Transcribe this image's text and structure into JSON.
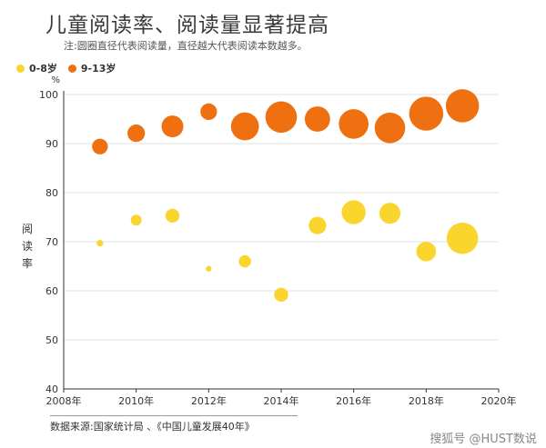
{
  "title": "儿童阅读率、阅读量显著提高",
  "subtitle": "注:圆圈直径代表阅读量，直径越大代表阅读本数越多。",
  "source": "数据来源:国家统计局 、《中国儿童发展40年》",
  "watermark": "搜狐号 @HUST数说",
  "ylabel": "阅读率",
  "colors": {
    "young": "#F9D52E",
    "old": "#EE7011"
  },
  "chart_data": {
    "type": "scatter",
    "y_unit": "%",
    "xlim": [
      2008,
      2020
    ],
    "ylim": [
      40,
      100
    ],
    "x_ticks": [
      2008,
      2010,
      2012,
      2014,
      2016,
      2018,
      2020
    ],
    "x_tick_labels": [
      "2008年",
      "2010年",
      "2012年",
      "2014年",
      "2016年",
      "2018年",
      "2020年"
    ],
    "y_ticks": [
      40,
      50,
      60,
      70,
      80,
      90,
      100
    ],
    "grid": true,
    "legend_position": "top-left",
    "series": [
      {
        "name": "0-8岁",
        "color": "#F9D52E",
        "points": [
          {
            "x": 2009,
            "y": 69.7,
            "size": 0.15
          },
          {
            "x": 2010,
            "y": 74.4,
            "size": 0.25
          },
          {
            "x": 2011,
            "y": 75.3,
            "size": 0.32
          },
          {
            "x": 2012,
            "y": 64.5,
            "size": 0.13
          },
          {
            "x": 2013,
            "y": 66.0,
            "size": 0.28
          },
          {
            "x": 2014,
            "y": 59.2,
            "size": 0.32
          },
          {
            "x": 2015,
            "y": 73.3,
            "size": 0.4
          },
          {
            "x": 2016,
            "y": 76.0,
            "size": 0.55
          },
          {
            "x": 2017,
            "y": 75.8,
            "size": 0.48
          },
          {
            "x": 2018,
            "y": 68.0,
            "size": 0.45
          },
          {
            "x": 2019,
            "y": 70.7,
            "size": 0.72
          }
        ]
      },
      {
        "name": "9-13岁",
        "color": "#EE7011",
        "points": [
          {
            "x": 2009,
            "y": 89.4,
            "size": 0.36
          },
          {
            "x": 2010,
            "y": 92.1,
            "size": 0.4
          },
          {
            "x": 2011,
            "y": 93.5,
            "size": 0.5
          },
          {
            "x": 2012,
            "y": 96.5,
            "size": 0.38
          },
          {
            "x": 2013,
            "y": 93.5,
            "size": 0.64
          },
          {
            "x": 2014,
            "y": 95.4,
            "size": 0.72
          },
          {
            "x": 2015,
            "y": 95.0,
            "size": 0.58
          },
          {
            "x": 2016,
            "y": 94.0,
            "size": 0.68
          },
          {
            "x": 2017,
            "y": 93.2,
            "size": 0.7
          },
          {
            "x": 2018,
            "y": 96.1,
            "size": 0.78
          },
          {
            "x": 2019,
            "y": 97.7,
            "size": 0.76
          }
        ]
      }
    ]
  }
}
